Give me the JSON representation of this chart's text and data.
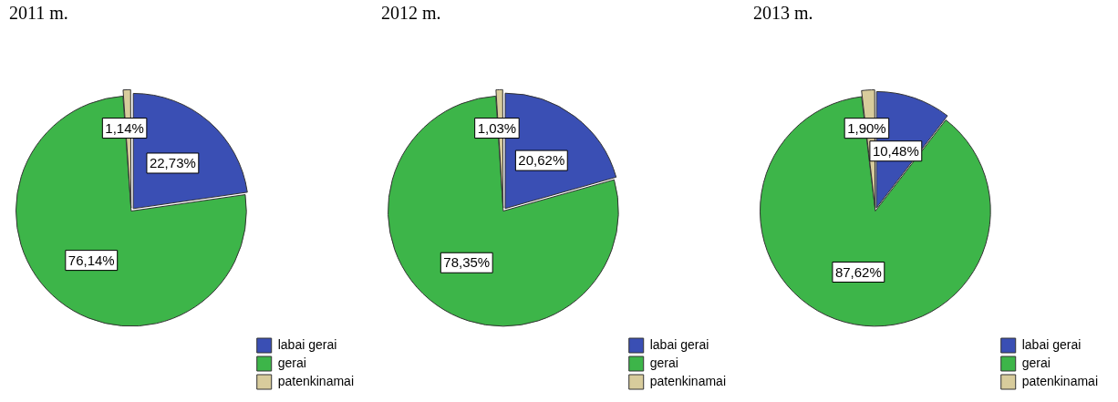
{
  "chart_data": [
    {
      "type": "pie",
      "title": "2011 m.",
      "categories": [
        "labai gerai",
        "gerai",
        "patenkinamai"
      ],
      "values": [
        22.73,
        76.14,
        1.14
      ],
      "colors": [
        "#3a4fb4",
        "#3db549",
        "#d8cc9c"
      ],
      "value_labels": [
        "22,73%",
        "76,14%",
        "1,14%"
      ],
      "legend": "bottom right"
    },
    {
      "type": "pie",
      "title": "2012 m.",
      "categories": [
        "labai gerai",
        "gerai",
        "patenkinamai"
      ],
      "values": [
        20.62,
        78.35,
        1.03
      ],
      "colors": [
        "#3a4fb4",
        "#3db549",
        "#d8cc9c"
      ],
      "value_labels": [
        "20,62%",
        "78,35%",
        "1,03%"
      ],
      "legend": "bottom right"
    },
    {
      "type": "pie",
      "title": "2013 m.",
      "categories": [
        "labai gerai",
        "gerai",
        "patenkinamai"
      ],
      "values": [
        10.48,
        87.62,
        1.9
      ],
      "colors": [
        "#3a4fb4",
        "#3db549",
        "#d8cc9c"
      ],
      "value_labels": [
        "10,48%",
        "87,62%",
        "1,90%"
      ],
      "legend": "bottom right"
    }
  ]
}
